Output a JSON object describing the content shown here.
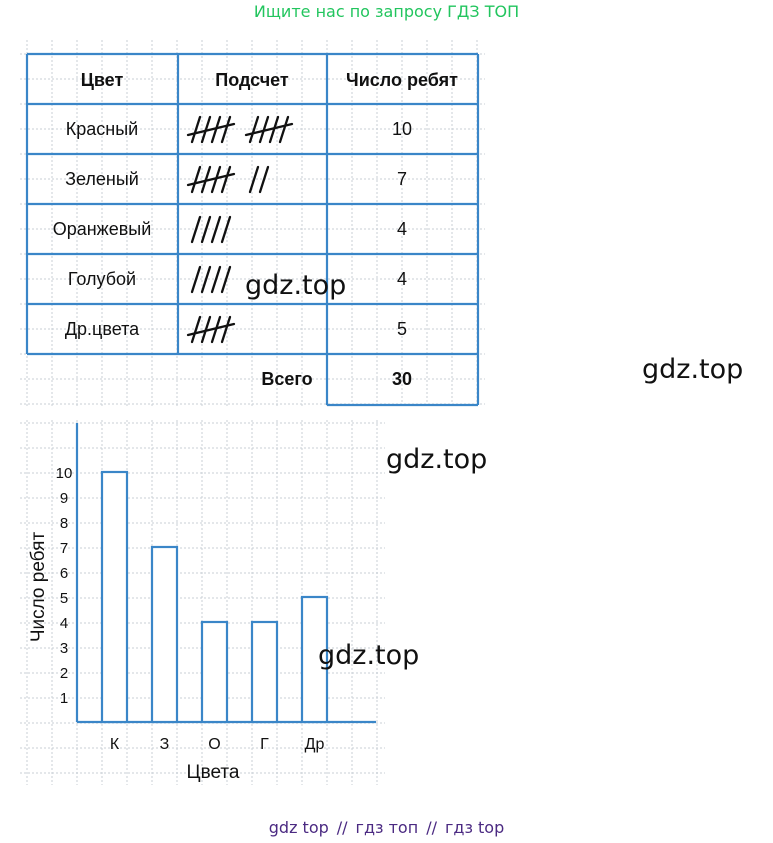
{
  "header_link": "Ищите нас по запросу ГДЗ ТОП",
  "footer": {
    "items": [
      "gdz top",
      "гдз топ",
      "гдз top"
    ],
    "separator": "//"
  },
  "watermark": "gdz.top",
  "table": {
    "headers": [
      "Цвет",
      "Подсчет",
      "Число ребят"
    ],
    "rows": [
      {
        "color": "Красный",
        "tally": 10,
        "count": "10"
      },
      {
        "color": "Зеленый",
        "tally": 7,
        "count": "7"
      },
      {
        "color": "Оранжевый",
        "tally": 4,
        "count": "4"
      },
      {
        "color": "Голубой",
        "tally": 4,
        "count": "4"
      },
      {
        "color": "Др.цвета",
        "tally": 5,
        "count": "5"
      }
    ],
    "total_label": "Всего",
    "total_value": "30"
  },
  "chart_data": {
    "type": "bar",
    "categories": [
      "К",
      "З",
      "О",
      "Г",
      "Др"
    ],
    "values": [
      10,
      7,
      4,
      4,
      5
    ],
    "xlabel": "Цвета",
    "ylabel": "Число ребят",
    "yticks": [
      1,
      2,
      3,
      4,
      5,
      6,
      7,
      8,
      9,
      10
    ],
    "ylim": [
      0,
      10
    ],
    "grid": true,
    "bar_fill": "#ffffff",
    "bar_stroke": "#3a86c8"
  },
  "colors": {
    "line": "#3a86c8",
    "grid": "#c9cfd6",
    "header": "#22c55e",
    "footer": "#4b2a82"
  }
}
